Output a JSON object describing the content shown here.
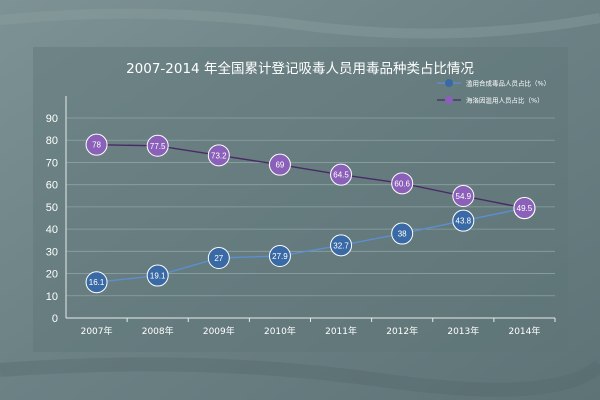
{
  "chart_data": {
    "type": "line",
    "title": "2007-2014 年全国累计登记吸毒人员用毒品种类占比情况",
    "categories": [
      "2007年",
      "2008年",
      "2009年",
      "2010年",
      "2011年",
      "2012年",
      "2013年",
      "2014年"
    ],
    "series": [
      {
        "name": "滥用合成毒品人员占比（%）",
        "color": "#3a6aa6",
        "line_color": "#5b8fd0",
        "values": [
          16.1,
          19.1,
          27,
          27.9,
          32.7,
          38,
          43.8,
          49.4
        ]
      },
      {
        "name": "海洛因滥用人员占比（%）",
        "color": "#8a60b8",
        "line_color": "#4a2a66",
        "values": [
          78,
          77.5,
          73.2,
          69,
          64.5,
          60.6,
          54.9,
          49.5
        ]
      }
    ],
    "ylim": [
      0,
      90
    ],
    "yticks": [
      0,
      10,
      20,
      30,
      40,
      50,
      60,
      70,
      80,
      90
    ],
    "grid": true,
    "legend": "top-right"
  }
}
